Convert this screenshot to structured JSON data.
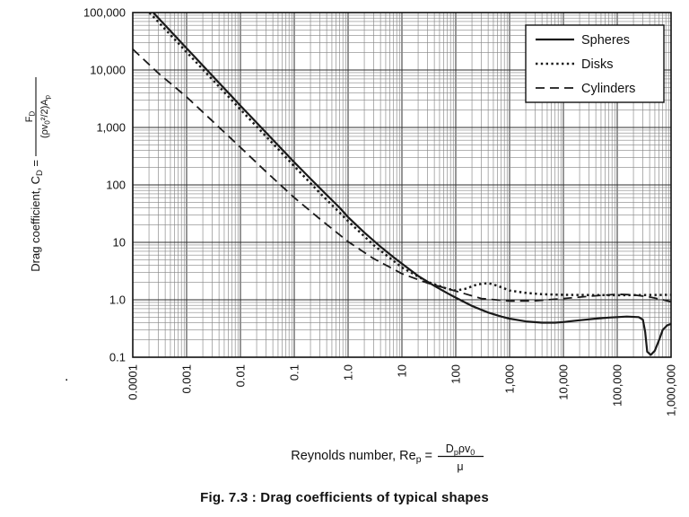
{
  "figure": {
    "caption": "Fig. 7.3 : Drag coefficients of typical shapes",
    "stray_mark": ".",
    "ink_color": "#1a1a1a",
    "grid_major_color": "#2e2e2e",
    "grid_minor_color": "#858585"
  },
  "chart_data": {
    "type": "line",
    "title": "",
    "x_scale": "log",
    "y_scale": "log",
    "xlim": [
      0.0001,
      1000000
    ],
    "ylim": [
      0.1,
      100000
    ],
    "grid": "log-log major and minor gridlines on",
    "x_tick_labels": [
      "0.0001",
      "0.001",
      "0.01",
      "0.1",
      "1.0",
      "10",
      "100",
      "1,000",
      "10,000",
      "100,000",
      "1,000,000"
    ],
    "y_tick_labels": [
      "100,000",
      "10,000",
      "1,000",
      "100",
      "10",
      "1.0",
      "0.1"
    ],
    "xlabel": {
      "prefix": "Reynolds number, Re~p~ =",
      "frac_num": "D~p~ρv~0~",
      "frac_den": "μ"
    },
    "ylabel": {
      "prefix": "Drag coefficient, C~D~ =",
      "frac_num": "F~D~",
      "frac_den": "(ρv~0~²/2)A~p~"
    },
    "legend": {
      "position": "top-right"
    },
    "series": [
      {
        "name": "Spheres",
        "line_style": "solid",
        "color": "#1a1a1a",
        "points": [
          [
            0.00024,
            100000
          ],
          [
            0.001,
            24000
          ],
          [
            0.01,
            2400
          ],
          [
            0.1,
            248
          ],
          [
            0.2,
            128
          ],
          [
            0.4,
            67
          ],
          [
            0.7,
            40
          ],
          [
            1,
            27.5
          ],
          [
            2,
            14.8
          ],
          [
            4,
            8.4
          ],
          [
            7,
            5.5
          ],
          [
            10,
            4.25
          ],
          [
            20,
            2.6
          ],
          [
            40,
            1.75
          ],
          [
            70,
            1.3
          ],
          [
            100,
            1.09
          ],
          [
            200,
            0.78
          ],
          [
            400,
            0.6
          ],
          [
            700,
            0.51
          ],
          [
            1000,
            0.47
          ],
          [
            2000,
            0.42
          ],
          [
            4000,
            0.4
          ],
          [
            7000,
            0.4
          ],
          [
            10000,
            0.41
          ],
          [
            20000,
            0.44
          ],
          [
            40000,
            0.47
          ],
          [
            70000,
            0.49
          ],
          [
            100000,
            0.5
          ],
          [
            150000,
            0.51
          ],
          [
            250000,
            0.5
          ],
          [
            300000,
            0.45
          ],
          [
            330000,
            0.28
          ],
          [
            360000,
            0.125
          ],
          [
            420000,
            0.11
          ],
          [
            500000,
            0.13
          ],
          [
            600000,
            0.2
          ],
          [
            700000,
            0.3
          ],
          [
            850000,
            0.36
          ],
          [
            1000000,
            0.38
          ]
        ]
      },
      {
        "name": "Disks",
        "line_style": "dotted",
        "color": "#1a1a1a",
        "points": [
          [
            0.000204,
            100000
          ],
          [
            0.001,
            20500
          ],
          [
            0.01,
            2060
          ],
          [
            0.1,
            212
          ],
          [
            0.3,
            72
          ],
          [
            1,
            23.5
          ],
          [
            3,
            8.9
          ],
          [
            10,
            3.65
          ],
          [
            30,
            2.05
          ],
          [
            70,
            1.55
          ],
          [
            100,
            1.45
          ],
          [
            150,
            1.55
          ],
          [
            250,
            1.85
          ],
          [
            400,
            1.95
          ],
          [
            600,
            1.75
          ],
          [
            1000,
            1.45
          ],
          [
            2000,
            1.32
          ],
          [
            4000,
            1.25
          ],
          [
            10000,
            1.22
          ],
          [
            100000,
            1.2
          ],
          [
            1000000,
            1.22
          ]
        ]
      },
      {
        "name": "Cylinders",
        "line_style": "dashed",
        "color": "#1a1a1a",
        "points": [
          [
            0.0001,
            23000
          ],
          [
            0.0003,
            8800
          ],
          [
            0.001,
            3400
          ],
          [
            0.003,
            1300
          ],
          [
            0.01,
            450
          ],
          [
            0.03,
            170
          ],
          [
            0.1,
            60
          ],
          [
            0.3,
            25.5
          ],
          [
            1,
            10.3
          ],
          [
            3,
            5.2
          ],
          [
            10,
            2.85
          ],
          [
            30,
            1.95
          ],
          [
            100,
            1.42
          ],
          [
            300,
            1.05
          ],
          [
            1000,
            0.95
          ],
          [
            3000,
            0.96
          ],
          [
            10000,
            1.05
          ],
          [
            30000,
            1.15
          ],
          [
            100000,
            1.25
          ],
          [
            200000,
            1.22
          ],
          [
            400000,
            1.12
          ],
          [
            700000,
            1.0
          ],
          [
            1000000,
            0.92
          ]
        ]
      }
    ]
  }
}
